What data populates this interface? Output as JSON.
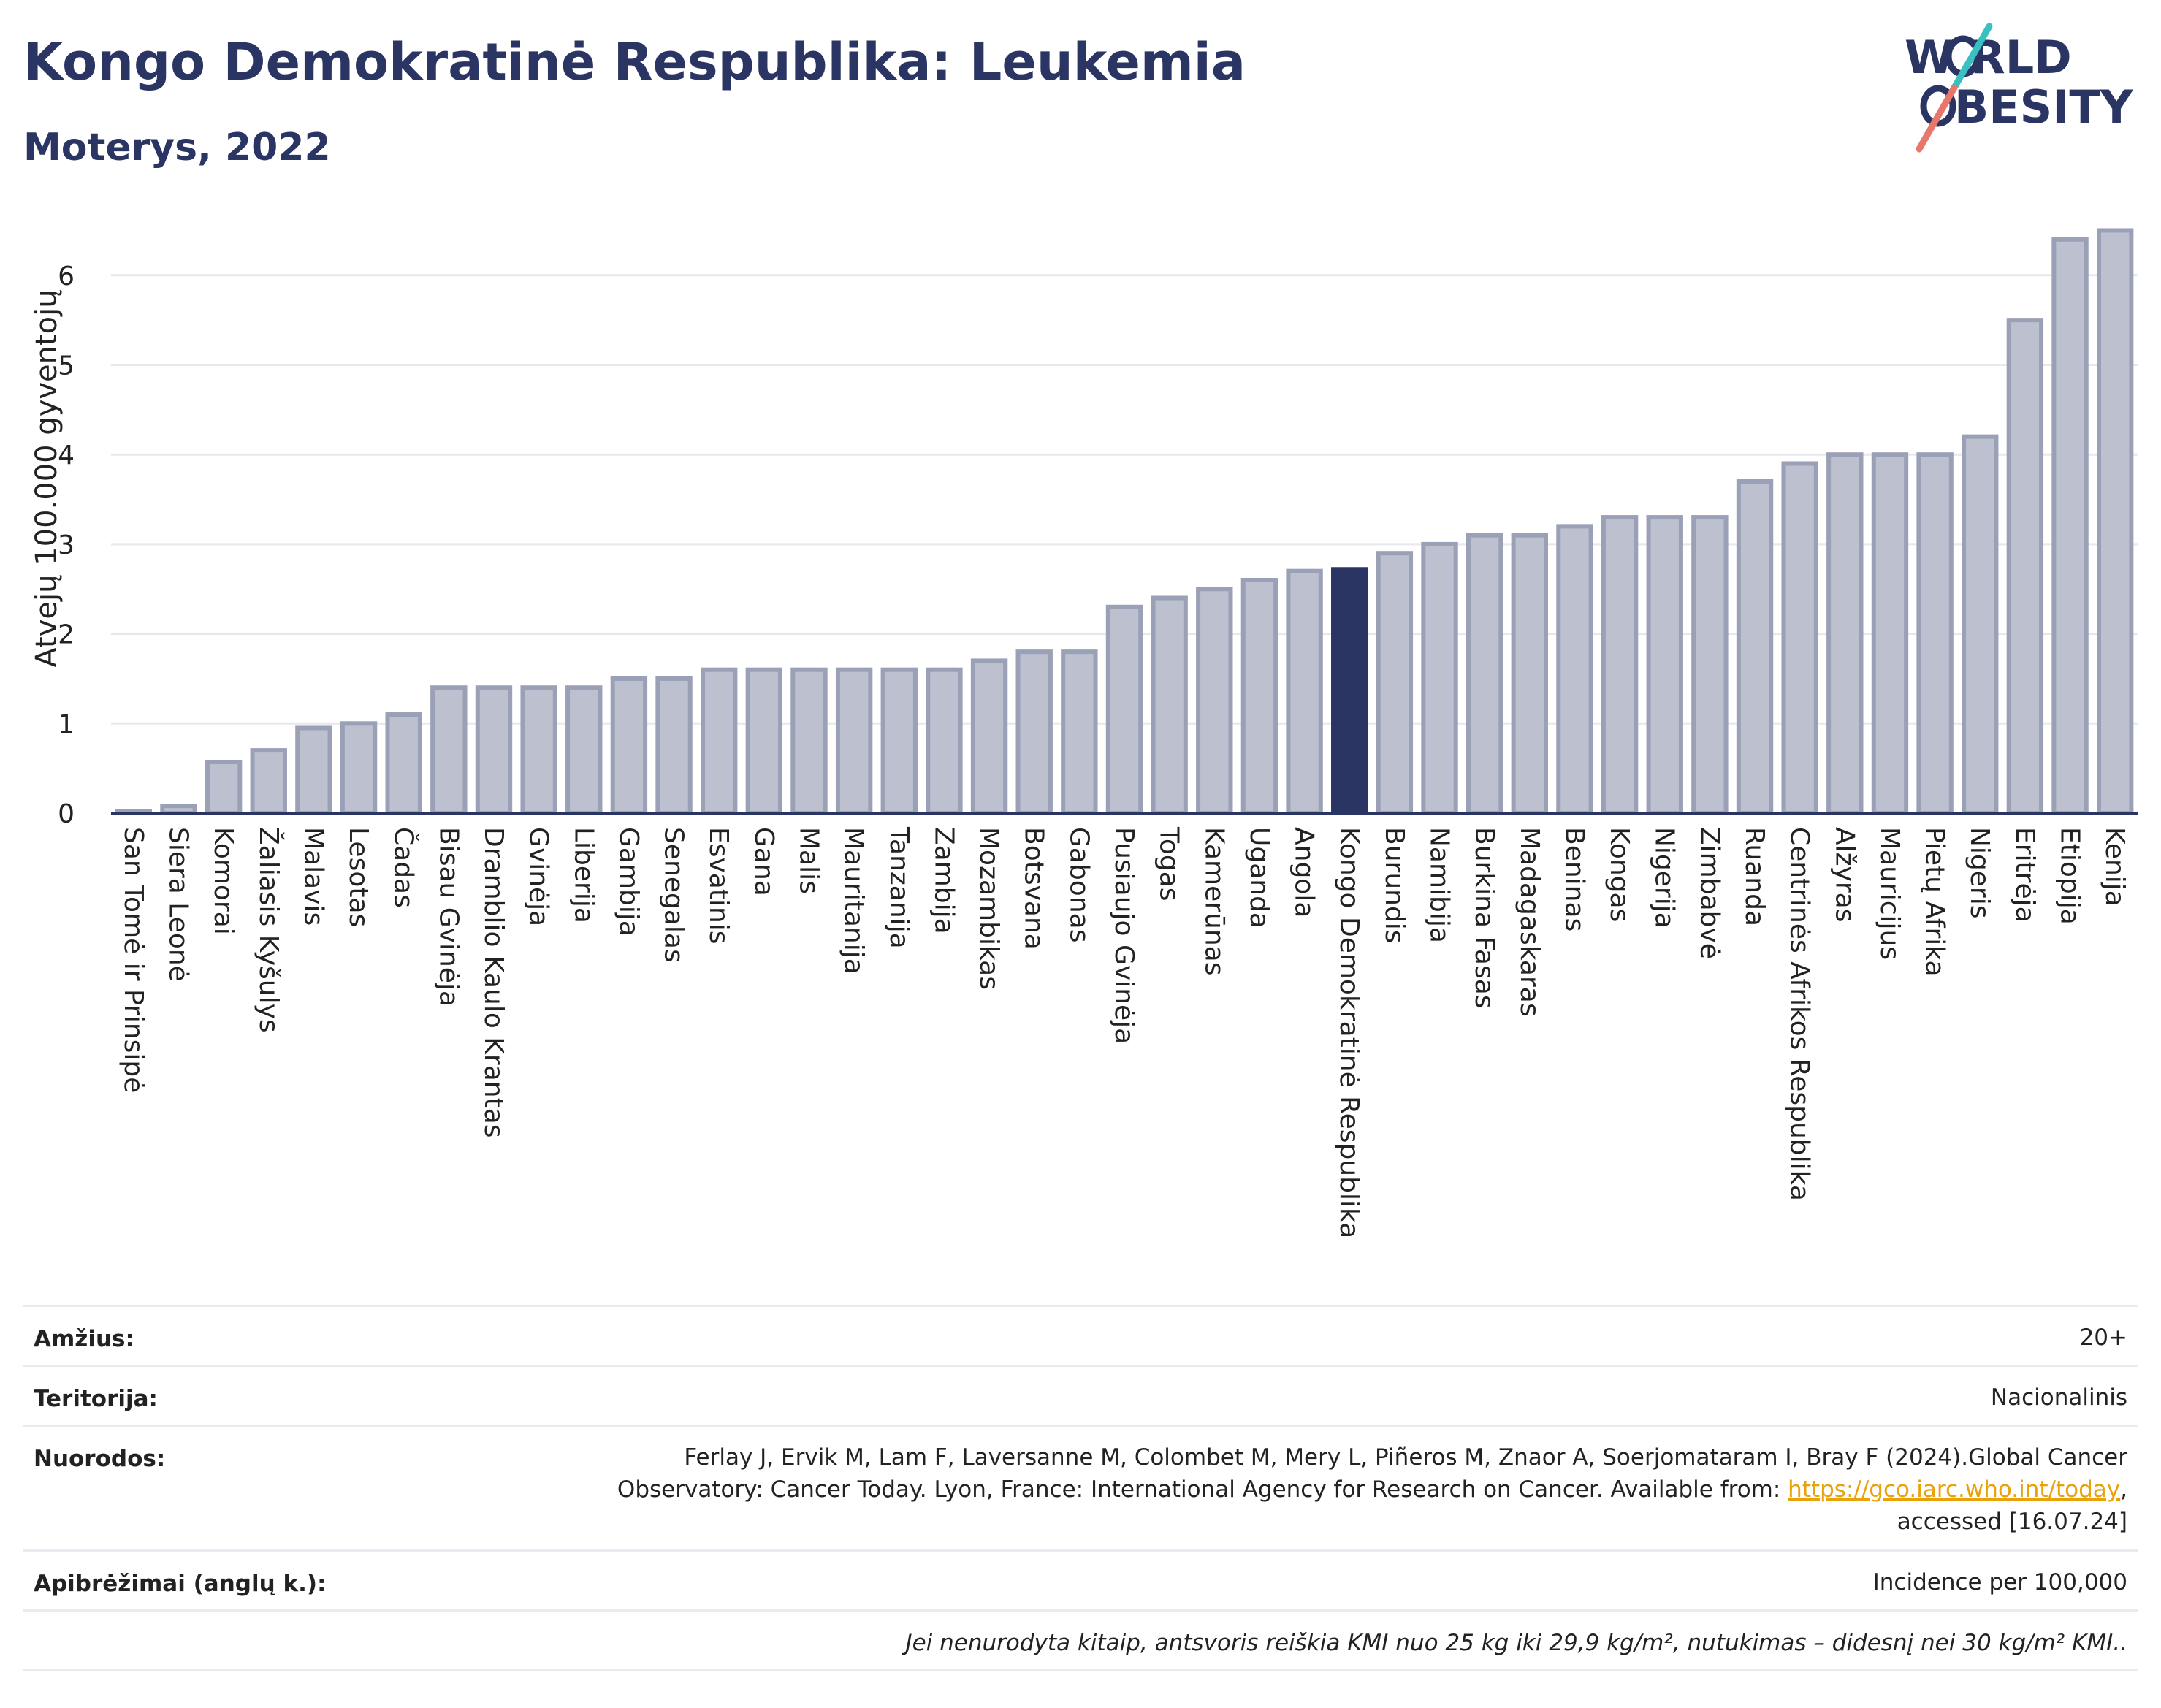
{
  "header": {
    "title": "Kongo Demokratinė Respublika: Leukemia",
    "subtitle": "Moterys, 2022"
  },
  "logo": {
    "line1": "W RLD",
    "line2": "BESITY",
    "text": "WORLD OBESITY",
    "colors": {
      "navy": "#2b3563",
      "teal": "#3bbfc1",
      "coral": "#e8766a"
    }
  },
  "chart_data": {
    "type": "bar",
    "title": "Kongo Demokratinė Respublika: Leukemia",
    "subtitle": "Moterys, 2022",
    "ylabel": "Atvejų 100.000 gyventojų",
    "xlabel": "",
    "ylim": [
      0,
      6.5
    ],
    "yticks": [
      0,
      1,
      2,
      3,
      4,
      5,
      6
    ],
    "grid": true,
    "highlight": "Kongo Demokratinė Respublika",
    "colors": {
      "bar": "#bcc0cf",
      "bar_edge": "#9aa0b6",
      "highlight": "#2b3563",
      "grid": "#e6e8ee"
    },
    "categories": [
      "San Tomė ir Prinsipė",
      "Siera Leonė",
      "Komorai",
      "Žaliasis Kyšulys",
      "Malavis",
      "Lesotas",
      "Čadas",
      "Bisau Gvinėja",
      "Dramblio Kaulo Krantas",
      "Gvinėja",
      "Liberija",
      "Gambija",
      "Senegalas",
      "Esvatinis",
      "Gana",
      "Malis",
      "Mauritanija",
      "Tanzanija",
      "Zambija",
      "Mozambikas",
      "Botsvana",
      "Gabonas",
      "Pusiaujo Gvinėja",
      "Togas",
      "Kamerūnas",
      "Uganda",
      "Angola",
      "Kongo Demokratinė Respublika",
      "Burundis",
      "Namibija",
      "Burkina Fasas",
      "Madagaskaras",
      "Beninas",
      "Kongas",
      "Nigerija",
      "Zimbabvė",
      "Ruanda",
      "Centrinės Afrikos Respublika",
      "Alžyras",
      "Mauricijus",
      "Pietų Afrika",
      "Nigeris",
      "Eritrėja",
      "Etiopija",
      "Kenija"
    ],
    "values": [
      0.02,
      0.08,
      0.57,
      0.7,
      0.95,
      1.0,
      1.1,
      1.4,
      1.4,
      1.4,
      1.4,
      1.5,
      1.5,
      1.6,
      1.6,
      1.6,
      1.6,
      1.6,
      1.6,
      1.7,
      1.8,
      1.8,
      2.3,
      2.4,
      2.5,
      2.6,
      2.7,
      2.72,
      2.9,
      3.0,
      3.1,
      3.1,
      3.2,
      3.3,
      3.3,
      3.3,
      3.7,
      3.9,
      4.0,
      4.0,
      4.0,
      4.2,
      5.5,
      6.4,
      6.5
    ]
  },
  "meta": {
    "age_label": "Amžius:",
    "age_value": "20+",
    "territory_label": "Teritorija:",
    "territory_value": "Nacionalinis",
    "refs_label": "Nuorodos:",
    "refs_line1": "Ferlay J, Ervik M, Lam F, Laversanne M, Colombet M, Mery L, Piñeros M, Znaor A, Soerjomataram I, Bray F (2024).Global Cancer",
    "refs_line2_prefix": "Observatory: Cancer Today. Lyon, France: International Agency for Research on Cancer. Available from: ",
    "refs_link": "https://gco.iarc.who.int/today",
    "refs_line2_suffix": ",",
    "refs_line3": "accessed [16.07.24]",
    "defs_label": "Apibrėžimai (anglų k.):",
    "defs_value": "Incidence per 100,000",
    "note": "Jei nenurodyta kitaip, antsvoris reiškia KMI nuo 25 kg iki 29,9 kg/m², nutukimas – didesnį nei 30 kg/m² KMI.."
  }
}
